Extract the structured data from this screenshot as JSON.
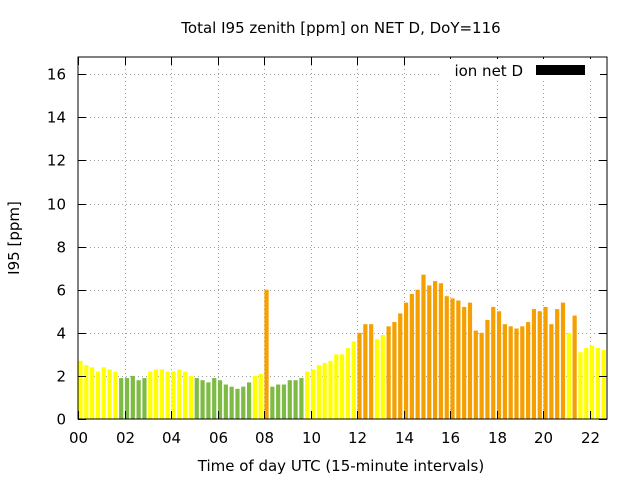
{
  "chart_data": {
    "type": "bar",
    "title": "Total I95 zenith [ppm] on NET D, DoY=116",
    "xlabel": "Time of day UTC (15-minute intervals)",
    "ylabel": "I95 [ppm]",
    "xlim": [
      0,
      22.75
    ],
    "ylim": [
      0,
      16.8
    ],
    "bin_width_hours": 0.25,
    "grid": true,
    "x_ticks": [
      {
        "value": 0,
        "label": "00"
      },
      {
        "value": 2,
        "label": "02"
      },
      {
        "value": 4,
        "label": "04"
      },
      {
        "value": 6,
        "label": "06"
      },
      {
        "value": 8,
        "label": "08"
      },
      {
        "value": 10,
        "label": "10"
      },
      {
        "value": 12,
        "label": "12"
      },
      {
        "value": 14,
        "label": "14"
      },
      {
        "value": 16,
        "label": "16"
      },
      {
        "value": 18,
        "label": "18"
      },
      {
        "value": 20,
        "label": "20"
      },
      {
        "value": 22,
        "label": "22"
      }
    ],
    "y_ticks": [
      {
        "value": 0,
        "label": "0"
      },
      {
        "value": 2,
        "label": "2"
      },
      {
        "value": 4,
        "label": "4"
      },
      {
        "value": 6,
        "label": "6"
      },
      {
        "value": 8,
        "label": "8"
      },
      {
        "value": 10,
        "label": "10"
      },
      {
        "value": 12,
        "label": "12"
      },
      {
        "value": 14,
        "label": "14"
      },
      {
        "value": 16,
        "label": "16"
      }
    ],
    "legend": {
      "label": "ion net D",
      "color": "#000000",
      "position": "top-right"
    },
    "colors": {
      "yellow": "#ffff00",
      "green": "#7dbb45",
      "orange": "#f5a000"
    },
    "bars": [
      {
        "t": 0.0,
        "v": 2.7,
        "c": "yellow"
      },
      {
        "t": 0.25,
        "v": 2.5,
        "c": "yellow"
      },
      {
        "t": 0.5,
        "v": 2.4,
        "c": "yellow"
      },
      {
        "t": 0.75,
        "v": 2.2,
        "c": "yellow"
      },
      {
        "t": 1.0,
        "v": 2.4,
        "c": "yellow"
      },
      {
        "t": 1.25,
        "v": 2.3,
        "c": "yellow"
      },
      {
        "t": 1.5,
        "v": 2.2,
        "c": "yellow"
      },
      {
        "t": 1.75,
        "v": 1.9,
        "c": "green"
      },
      {
        "t": 2.0,
        "v": 1.9,
        "c": "green"
      },
      {
        "t": 2.25,
        "v": 2.0,
        "c": "green"
      },
      {
        "t": 2.5,
        "v": 1.8,
        "c": "green"
      },
      {
        "t": 2.75,
        "v": 1.9,
        "c": "green"
      },
      {
        "t": 3.0,
        "v": 2.2,
        "c": "yellow"
      },
      {
        "t": 3.25,
        "v": 2.3,
        "c": "yellow"
      },
      {
        "t": 3.5,
        "v": 2.3,
        "c": "yellow"
      },
      {
        "t": 3.75,
        "v": 2.2,
        "c": "yellow"
      },
      {
        "t": 4.0,
        "v": 2.2,
        "c": "yellow"
      },
      {
        "t": 4.25,
        "v": 2.3,
        "c": "yellow"
      },
      {
        "t": 4.5,
        "v": 2.2,
        "c": "yellow"
      },
      {
        "t": 4.75,
        "v": 2.0,
        "c": "yellow"
      },
      {
        "t": 5.0,
        "v": 1.9,
        "c": "green"
      },
      {
        "t": 5.25,
        "v": 1.8,
        "c": "green"
      },
      {
        "t": 5.5,
        "v": 1.7,
        "c": "green"
      },
      {
        "t": 5.75,
        "v": 1.9,
        "c": "green"
      },
      {
        "t": 6.0,
        "v": 1.8,
        "c": "green"
      },
      {
        "t": 6.25,
        "v": 1.6,
        "c": "green"
      },
      {
        "t": 6.5,
        "v": 1.5,
        "c": "green"
      },
      {
        "t": 6.75,
        "v": 1.4,
        "c": "green"
      },
      {
        "t": 7.0,
        "v": 1.5,
        "c": "green"
      },
      {
        "t": 7.25,
        "v": 1.7,
        "c": "green"
      },
      {
        "t": 7.5,
        "v": 2.0,
        "c": "yellow"
      },
      {
        "t": 7.75,
        "v": 2.1,
        "c": "yellow"
      },
      {
        "t": 8.0,
        "v": 6.0,
        "c": "orange"
      },
      {
        "t": 8.25,
        "v": 1.5,
        "c": "green"
      },
      {
        "t": 8.5,
        "v": 1.6,
        "c": "green"
      },
      {
        "t": 8.75,
        "v": 1.6,
        "c": "green"
      },
      {
        "t": 9.0,
        "v": 1.8,
        "c": "green"
      },
      {
        "t": 9.25,
        "v": 1.8,
        "c": "green"
      },
      {
        "t": 9.5,
        "v": 1.9,
        "c": "green"
      },
      {
        "t": 9.75,
        "v": 2.2,
        "c": "yellow"
      },
      {
        "t": 10.0,
        "v": 2.3,
        "c": "yellow"
      },
      {
        "t": 10.25,
        "v": 2.5,
        "c": "yellow"
      },
      {
        "t": 10.5,
        "v": 2.6,
        "c": "yellow"
      },
      {
        "t": 10.75,
        "v": 2.7,
        "c": "yellow"
      },
      {
        "t": 11.0,
        "v": 3.0,
        "c": "yellow"
      },
      {
        "t": 11.25,
        "v": 3.0,
        "c": "yellow"
      },
      {
        "t": 11.5,
        "v": 3.3,
        "c": "yellow"
      },
      {
        "t": 11.75,
        "v": 3.6,
        "c": "yellow"
      },
      {
        "t": 12.0,
        "v": 4.0,
        "c": "orange"
      },
      {
        "t": 12.25,
        "v": 4.4,
        "c": "orange"
      },
      {
        "t": 12.5,
        "v": 4.4,
        "c": "orange"
      },
      {
        "t": 12.75,
        "v": 3.7,
        "c": "yellow"
      },
      {
        "t": 13.0,
        "v": 3.9,
        "c": "yellow"
      },
      {
        "t": 13.25,
        "v": 4.3,
        "c": "orange"
      },
      {
        "t": 13.5,
        "v": 4.5,
        "c": "orange"
      },
      {
        "t": 13.75,
        "v": 4.9,
        "c": "orange"
      },
      {
        "t": 14.0,
        "v": 5.4,
        "c": "orange"
      },
      {
        "t": 14.25,
        "v": 5.8,
        "c": "orange"
      },
      {
        "t": 14.5,
        "v": 6.0,
        "c": "orange"
      },
      {
        "t": 14.75,
        "v": 6.7,
        "c": "orange"
      },
      {
        "t": 15.0,
        "v": 6.2,
        "c": "orange"
      },
      {
        "t": 15.25,
        "v": 6.4,
        "c": "orange"
      },
      {
        "t": 15.5,
        "v": 6.3,
        "c": "orange"
      },
      {
        "t": 15.75,
        "v": 5.7,
        "c": "orange"
      },
      {
        "t": 16.0,
        "v": 5.6,
        "c": "orange"
      },
      {
        "t": 16.25,
        "v": 5.5,
        "c": "orange"
      },
      {
        "t": 16.5,
        "v": 5.2,
        "c": "orange"
      },
      {
        "t": 16.75,
        "v": 5.4,
        "c": "orange"
      },
      {
        "t": 17.0,
        "v": 4.1,
        "c": "orange"
      },
      {
        "t": 17.25,
        "v": 4.0,
        "c": "orange"
      },
      {
        "t": 17.5,
        "v": 4.6,
        "c": "orange"
      },
      {
        "t": 17.75,
        "v": 5.2,
        "c": "orange"
      },
      {
        "t": 18.0,
        "v": 5.0,
        "c": "orange"
      },
      {
        "t": 18.25,
        "v": 4.4,
        "c": "orange"
      },
      {
        "t": 18.5,
        "v": 4.3,
        "c": "orange"
      },
      {
        "t": 18.75,
        "v": 4.2,
        "c": "orange"
      },
      {
        "t": 19.0,
        "v": 4.3,
        "c": "orange"
      },
      {
        "t": 19.25,
        "v": 4.5,
        "c": "orange"
      },
      {
        "t": 19.5,
        "v": 5.1,
        "c": "orange"
      },
      {
        "t": 19.75,
        "v": 5.0,
        "c": "orange"
      },
      {
        "t": 20.0,
        "v": 5.2,
        "c": "orange"
      },
      {
        "t": 20.25,
        "v": 4.4,
        "c": "orange"
      },
      {
        "t": 20.5,
        "v": 5.1,
        "c": "orange"
      },
      {
        "t": 20.75,
        "v": 5.4,
        "c": "orange"
      },
      {
        "t": 21.0,
        "v": 4.0,
        "c": "yellow"
      },
      {
        "t": 21.25,
        "v": 4.8,
        "c": "orange"
      },
      {
        "t": 21.5,
        "v": 3.1,
        "c": "yellow"
      },
      {
        "t": 21.75,
        "v": 3.3,
        "c": "yellow"
      },
      {
        "t": 22.0,
        "v": 3.4,
        "c": "yellow"
      },
      {
        "t": 22.25,
        "v": 3.3,
        "c": "yellow"
      },
      {
        "t": 22.5,
        "v": 3.2,
        "c": "yellow"
      }
    ]
  }
}
